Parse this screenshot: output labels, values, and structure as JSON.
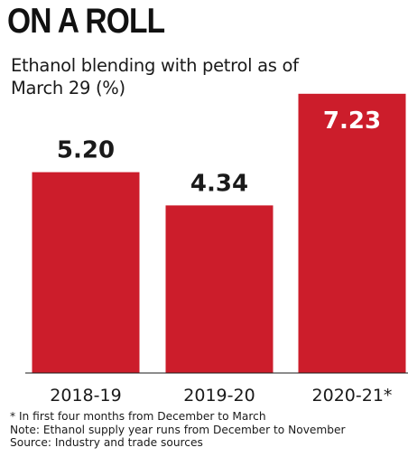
{
  "title": "ON A ROLL",
  "subtitle": "Ethanol blending with petrol as of March 29 (%)",
  "footnotes": [
    "* In first four months from December to March",
    "Note: Ethanol supply year runs from December to November",
    "Source: Industry and trade sources"
  ],
  "colors": {
    "bar": "#cc1d2b",
    "bar_label_light": "#ffffff",
    "bar_label_dark": "#1a1a1a"
  },
  "chart_data": {
    "type": "bar",
    "title": "ON A ROLL",
    "subtitle": "Ethanol blending with petrol as of March 29 (%)",
    "categories": [
      "2018-19",
      "2019-20",
      "2020-21*"
    ],
    "values": [
      5.2,
      4.34,
      7.23
    ],
    "value_labels": [
      "5.20",
      "4.34",
      "7.23"
    ],
    "ylim": [
      0,
      7.6
    ],
    "xlabel": "",
    "ylabel": "",
    "grid": false,
    "legend": "none"
  }
}
